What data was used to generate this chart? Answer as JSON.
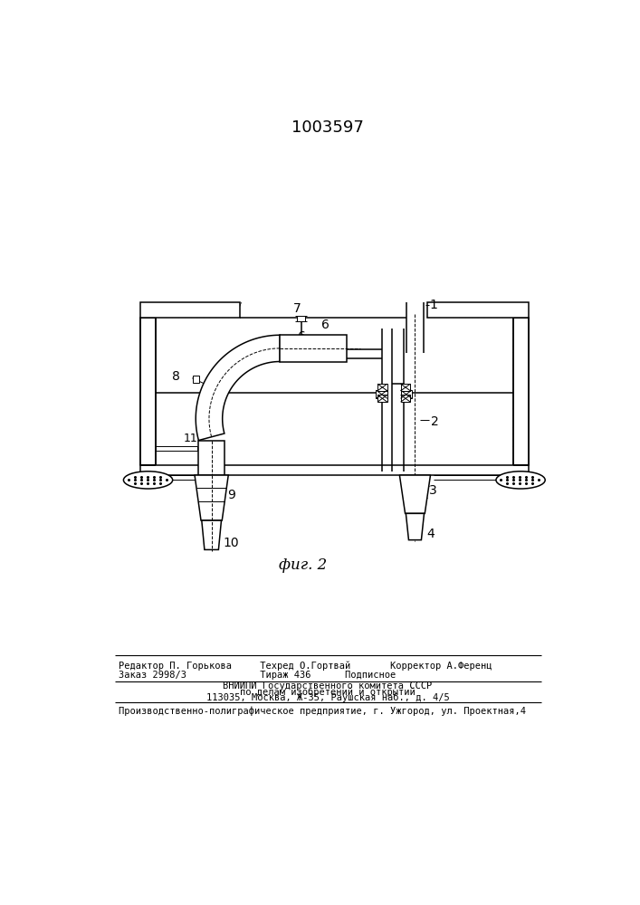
{
  "title": "1003597",
  "fig_label": "фиг. 2",
  "bg_color": "#ffffff",
  "footer_line1": "Редактор П. Горькова     Техред О.Гортвай       Корректор А.Ференц",
  "footer_line2": "Заказ 2998/3             Тираж 436      Подписное",
  "footer_line3": "ВНИИПИ Государственного комитета СССР",
  "footer_line4": "по делам изобретений и открытий",
  "footer_line5": "113035, Москва, Ж-35, Раушская наб., д. 4/5",
  "footer_line6": "Производственно-полиграфическое предприятие, г. Ужгород, ул. Проектная,4"
}
